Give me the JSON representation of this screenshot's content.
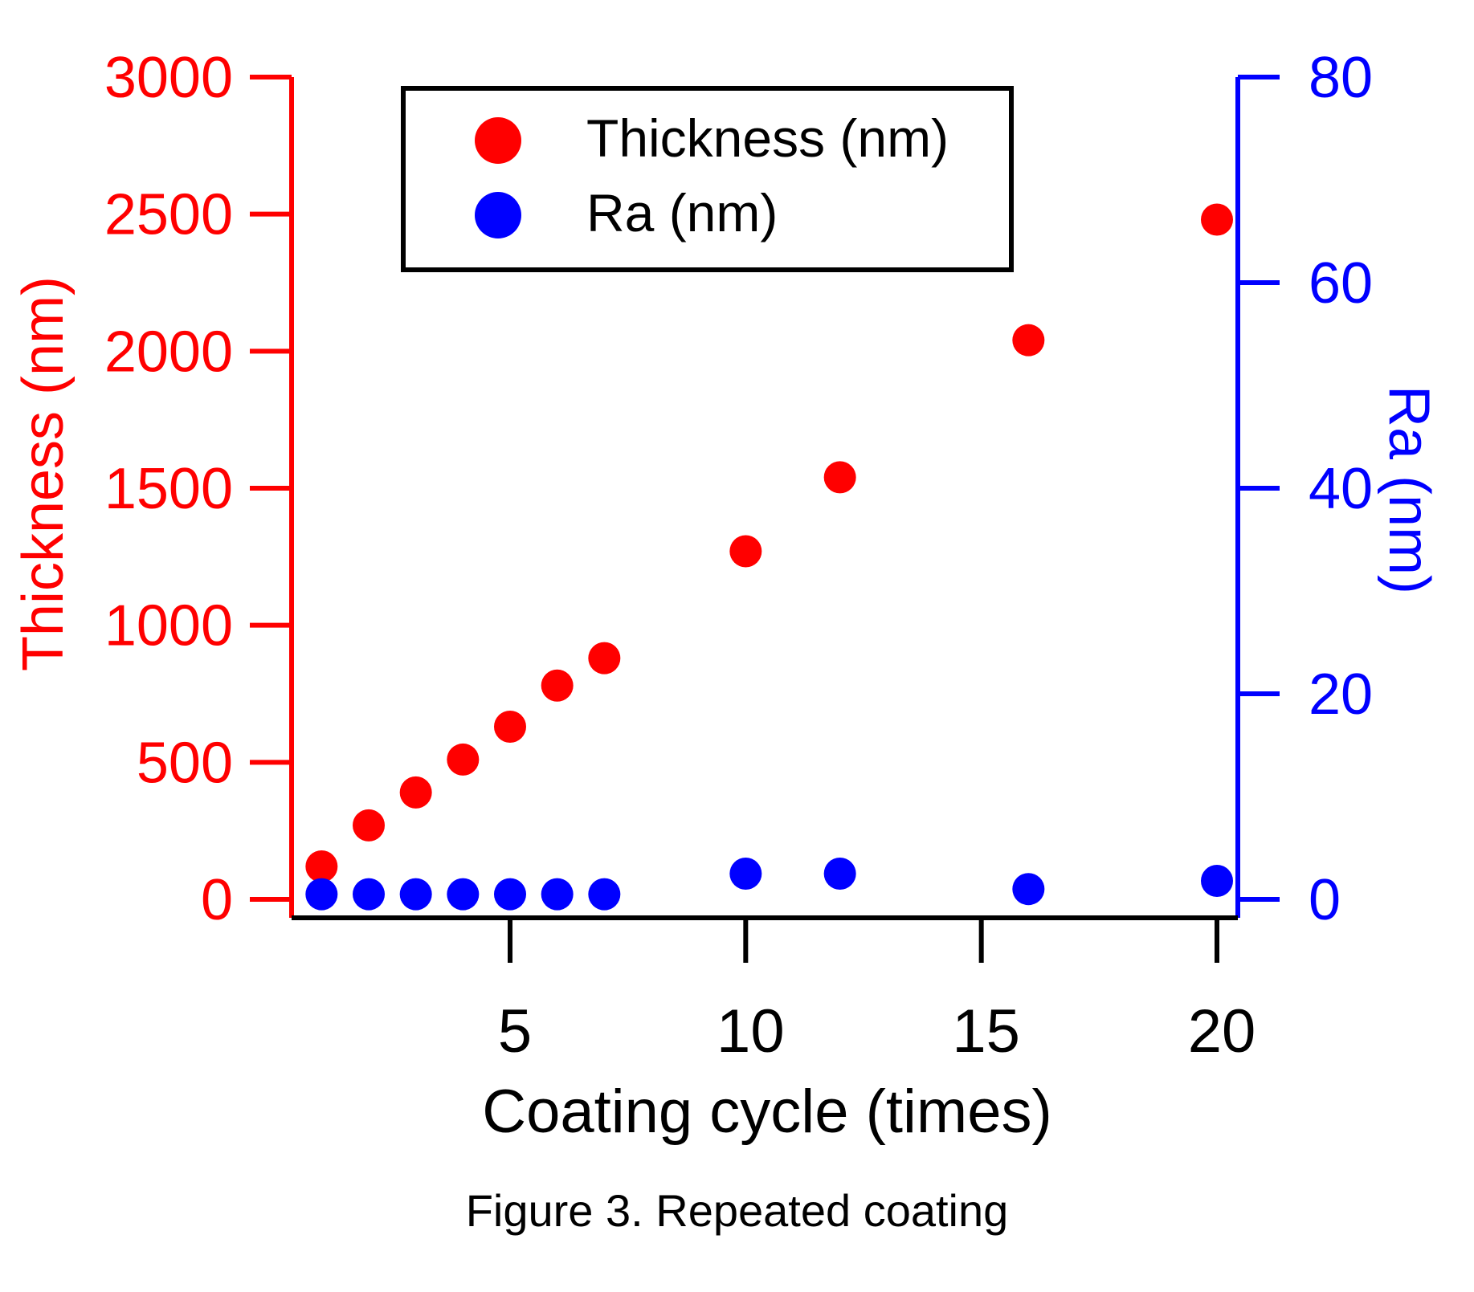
{
  "chart_data": {
    "type": "scatter",
    "xlabel": "Coating cycle (times)",
    "ylabel_left": "Thickness (nm)",
    "ylabel_right": "Ra (nm)",
    "xlim": [
      0,
      20.5
    ],
    "xticks": [
      5,
      10,
      15,
      20
    ],
    "y_left_lim": [
      0,
      3000
    ],
    "y_left_ticks": [
      0,
      500,
      1000,
      1500,
      2000,
      2500,
      3000
    ],
    "y_right_lim": [
      0,
      80
    ],
    "y_right_ticks": [
      0,
      20,
      40,
      60,
      80
    ],
    "legend_position": "top-center",
    "series": [
      {
        "name": "Thickness (nm)",
        "axis": "left",
        "color": "#ff0000",
        "x": [
          1,
          2,
          3,
          4,
          5,
          6,
          7,
          10,
          12,
          16,
          20
        ],
        "y": [
          120,
          270,
          390,
          510,
          630,
          780,
          880,
          1270,
          1540,
          2040,
          2480
        ]
      },
      {
        "name": "Ra (nm)",
        "axis": "right",
        "color": "#0000ff",
        "x": [
          1,
          2,
          3,
          4,
          5,
          6,
          7,
          10,
          12,
          16,
          20
        ],
        "y": [
          0.5,
          0.5,
          0.5,
          0.5,
          0.5,
          0.5,
          0.5,
          2.5,
          2.5,
          1.0,
          1.8
        ]
      }
    ]
  },
  "caption": "Figure 3. Repeated coating"
}
